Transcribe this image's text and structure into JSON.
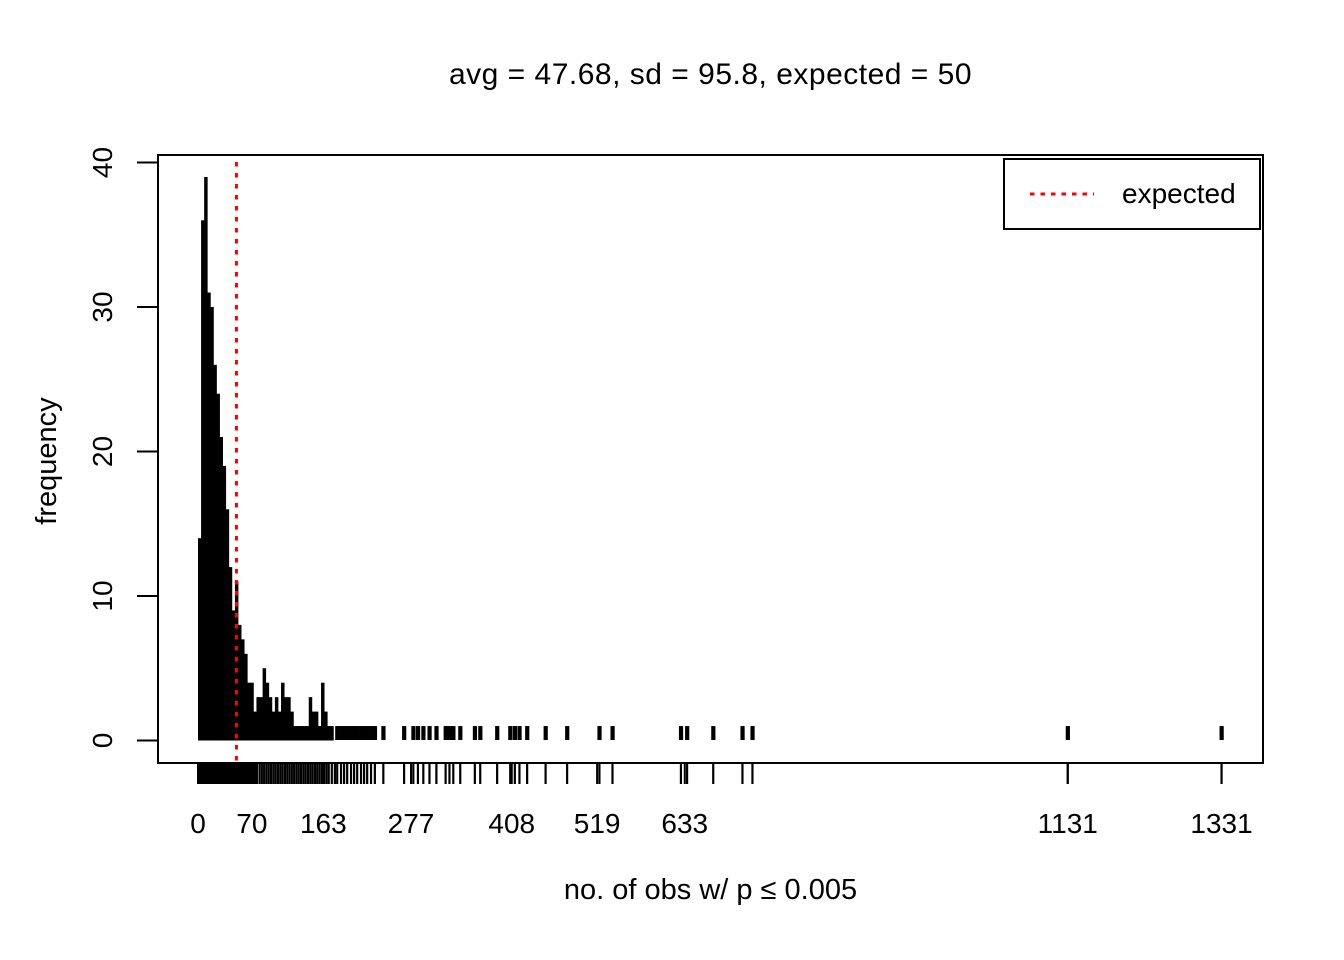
{
  "chart_data": {
    "type": "bar",
    "subtype": "histogram-with-rug",
    "title": "avg = 47.68, sd = 95.8, expected = 50",
    "xlabel": "no. of obs w/ p ≤ 0.005",
    "ylabel": "frequency",
    "x_ticks": [
      0,
      70,
      163,
      277,
      408,
      519,
      633,
      1131,
      1331
    ],
    "y_ticks": [
      0,
      10,
      20,
      30,
      40
    ],
    "xlim": [
      -53,
      1385
    ],
    "ylim": [
      -1.6,
      41.6
    ],
    "grid": false,
    "legend": {
      "label": "expected",
      "position": "topright",
      "line_style": "dotted"
    },
    "expected_line": {
      "x": 50,
      "style": "dotted",
      "color": "#FF0000"
    },
    "histogram": {
      "bin_start": 0,
      "bin_width": 4,
      "counts": [
        14,
        36,
        39,
        31,
        30,
        26,
        24,
        21,
        19,
        16,
        12,
        9,
        11,
        8,
        7,
        6,
        4,
        4,
        2,
        3,
        3,
        5,
        4,
        3,
        2,
        3,
        2,
        4,
        3,
        3,
        2,
        1,
        1,
        1,
        1,
        1,
        3,
        2,
        2,
        1,
        4,
        2,
        1,
        1
      ]
    },
    "singleton_bars_x": [
      181,
      186,
      190,
      194,
      199,
      203,
      207,
      212,
      216,
      220,
      225,
      230,
      241,
      268,
      280,
      286,
      293,
      301,
      310,
      322,
      327,
      332,
      341,
      360,
      367,
      389,
      406,
      412,
      418,
      428,
      452,
      480,
      522,
      539,
      628,
      636,
      670,
      708,
      721,
      1131,
      1331
    ],
    "rug": {
      "solid_band": [
        0,
        78
      ],
      "marks_x": [
        80,
        83,
        86,
        89,
        92,
        95,
        98,
        101,
        104,
        107,
        110,
        113,
        116,
        119,
        122,
        125,
        128,
        131,
        134,
        137,
        140,
        143,
        146,
        149,
        152,
        155,
        158,
        161,
        164,
        167,
        170,
        174,
        178
      ]
    },
    "colors": {
      "bars": "#000000",
      "frame": "#000000",
      "text": "#000000",
      "expected_line": "#FF0000",
      "background": "#FFFFFF"
    }
  }
}
